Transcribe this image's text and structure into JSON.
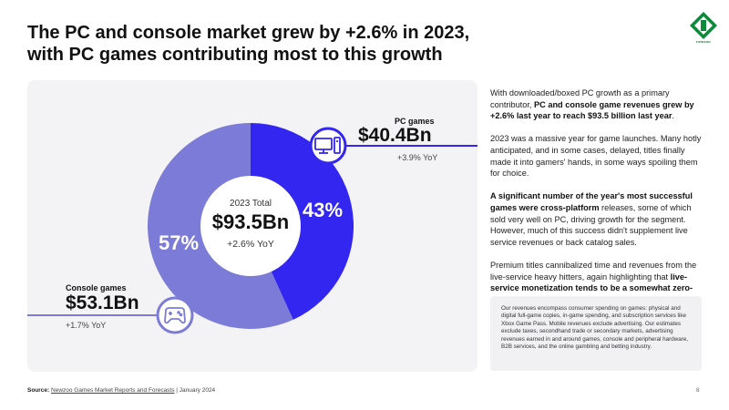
{
  "title": {
    "line1": "The PC and console market grew by +2.6% in 2023,",
    "line2": "with PC games contributing most to this growth"
  },
  "logo": {
    "word": "newzoo"
  },
  "chart_data": {
    "type": "pie",
    "title": "2023 Total",
    "total": "$93.5Bn",
    "total_yoy": "+2.6% YoY",
    "segments": [
      {
        "name": "PC games",
        "value": 40.4,
        "share_label": "43%",
        "value_label": "$40.4Bn",
        "yoy": "+3.9% YoY",
        "color": "#3226f0"
      },
      {
        "name": "Console games",
        "value": 53.1,
        "share_label": "57%",
        "value_label": "$53.1Bn",
        "yoy": "+1.7% YoY",
        "color": "#7c7cd8"
      }
    ]
  },
  "body": {
    "p1_a": "With downloaded/boxed PC growth as a primary contributor, ",
    "p1_b": "PC and console game revenues grew by +2.6% last year to reach $93.5 billion last year",
    "p1_c": ".",
    "p2": "2023 was a massive year for game launches. Many hotly anticipated, and in some cases, delayed, titles finally made it into gamers' hands, in some ways spoiling them for choice.",
    "p3_a": "A significant number of the year's most successful games were cross-platform",
    "p3_b": " releases, some of which sold very well on PC, driving growth for the segment. However, much of this success didn't supplement live service revenues or back catalog sales.",
    "p4_a": "Premium titles cannibalized time and revenues from the live-service heavy hitters, again highlighting that ",
    "p4_b": "live-service monetization tends to be a somewhat zero-sum game",
    "p4_c": "."
  },
  "note": "Our revenues encompass consumer spending on games: physical and digital full-game copies, in-game spending, and subscription services like Xbox Game Pass. Mobile revenues exclude advertising. Our estimates exclude taxes, secondhand trade or secondary markets, advertising revenues earned in and around games, console and peripheral hardware, B2B services, and the online gambling and betting industry.",
  "footer": {
    "source_label": "Source:",
    "source_link": "Newzoo Games Market Reports and Forecasts",
    "source_date": " | January 2024"
  },
  "page_number": "8"
}
